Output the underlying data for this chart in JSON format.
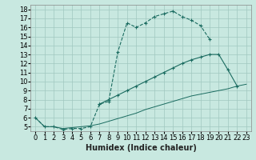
{
  "xlabel": "Humidex (Indice chaleur)",
  "background_color": "#c8e8e0",
  "grid_color": "#a0c8c0",
  "line_color": "#1a6b60",
  "xlim": [
    -0.5,
    23.5
  ],
  "ylim": [
    4.5,
    18.5
  ],
  "xticks": [
    0,
    1,
    2,
    3,
    4,
    5,
    6,
    7,
    8,
    9,
    10,
    11,
    12,
    13,
    14,
    15,
    16,
    17,
    18,
    19,
    20,
    21,
    22,
    23
  ],
  "yticks": [
    5,
    6,
    7,
    8,
    9,
    10,
    11,
    12,
    13,
    14,
    15,
    16,
    17,
    18
  ],
  "c1x": [
    0,
    1,
    2,
    3,
    4,
    5,
    6,
    7,
    8,
    9,
    10,
    11,
    12,
    13,
    14,
    15,
    16,
    17,
    18,
    19
  ],
  "c1y": [
    6.0,
    5.0,
    5.0,
    4.7,
    4.8,
    4.8,
    5.0,
    7.5,
    7.8,
    13.3,
    16.5,
    16.0,
    16.5,
    17.2,
    17.5,
    17.8,
    17.2,
    16.8,
    16.2,
    14.7
  ],
  "c2x": [
    7,
    8,
    9,
    10,
    11,
    12,
    13,
    14,
    15,
    16,
    17,
    18,
    19,
    20,
    21,
    22
  ],
  "c2y": [
    7.5,
    8.0,
    8.5,
    9.0,
    9.5,
    10.0,
    10.5,
    11.0,
    11.5,
    12.0,
    12.4,
    12.7,
    13.0,
    13.0,
    11.3,
    9.5
  ],
  "c3x": [
    0,
    1,
    2,
    3,
    4,
    5,
    6,
    7,
    8,
    9,
    10,
    11,
    12,
    13,
    14,
    15,
    16,
    17,
    18,
    19,
    20,
    21,
    22,
    23
  ],
  "c3y": [
    6.0,
    5.0,
    5.0,
    4.8,
    4.9,
    5.0,
    5.1,
    5.3,
    5.6,
    5.9,
    6.2,
    6.5,
    6.9,
    7.2,
    7.5,
    7.8,
    8.1,
    8.4,
    8.6,
    8.8,
    9.0,
    9.2,
    9.5,
    9.7
  ],
  "font_size_axis": 6,
  "font_size_label": 7
}
